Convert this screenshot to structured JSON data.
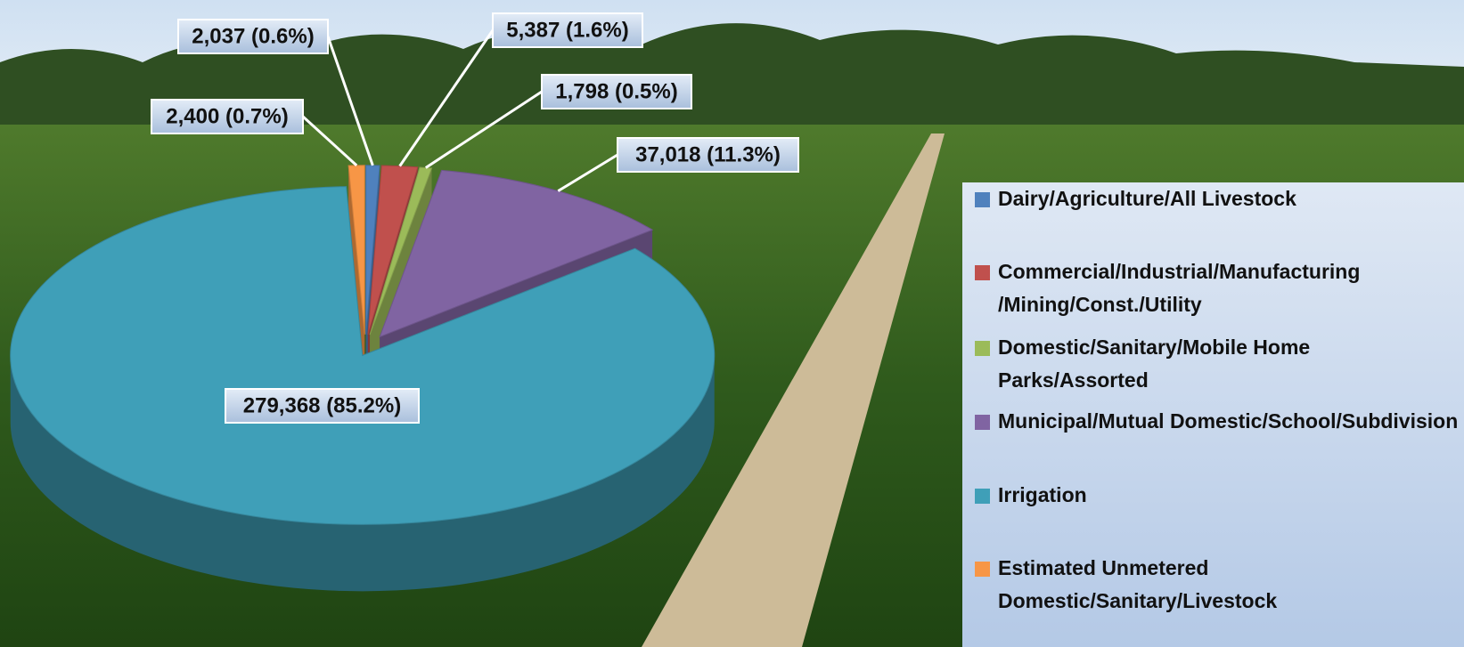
{
  "chart_data": {
    "type": "pie",
    "categories": [
      "Dairy/Agriculture/All Livestock",
      "Commercial/Industrial/Manufacturing /Mining/Const./Utility",
      "Domestic/Sanitary/Mobile Home Parks/Assorted",
      "Municipal/Mutual Domestic/School/Subdivision",
      "Irrigation",
      "Estimated Unmetered Domestic/Sanitary/Livestock"
    ],
    "values": [
      2037,
      5387,
      1798,
      37018,
      279368,
      2400
    ],
    "value_labels": [
      "2,037 (0.6%)",
      "5,387 (1.6%)",
      "1,798 (0.5%)",
      "37,018 (11.3%)",
      "279,368 (85.2%)",
      "2,400 (0.7%)"
    ],
    "colors": [
      "#4f81bd",
      "#c0504d",
      "#9bbb59",
      "#8064a2",
      "#3f9fb8",
      "#f79646"
    ]
  }
}
